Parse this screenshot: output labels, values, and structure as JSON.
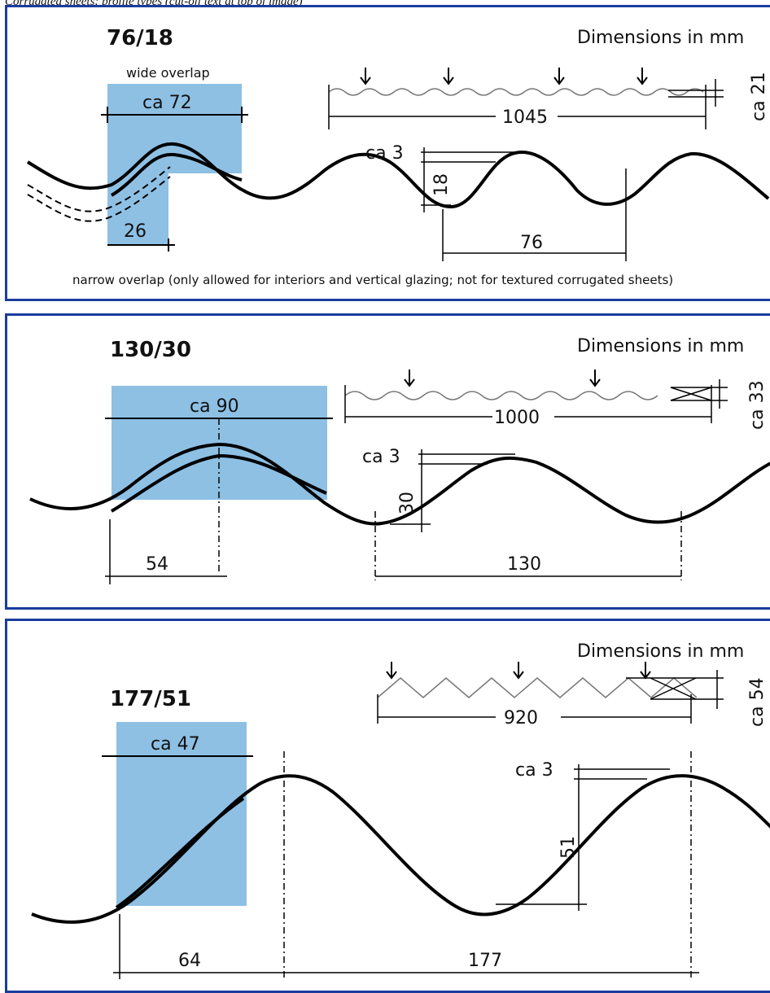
{
  "caption": "Corrugated sheets: profile types (cut-off text at top of image)",
  "colors": {
    "border": "#1a3d9e",
    "overlap_fill": "#8ec0e4",
    "line": "#000000"
  },
  "panels": [
    {
      "profile": "76/18",
      "units": "Dimensions in mm",
      "wide_overlap": "wide overlap",
      "overlap_width": "ca 72",
      "narrow_width": "26",
      "sheet_width": "1045",
      "total_height": "ca 21",
      "thickness": "ca 3",
      "wave_height": "18",
      "pitch": "76",
      "narrow_note": "narrow overlap (only allowed for interiors and vertical glazing; not for textured corrugated sheets)"
    },
    {
      "profile": "130/30",
      "units": "Dimensions in mm",
      "overlap_width": "ca 90",
      "sheet_width": "1000",
      "total_height": "ca 33",
      "thickness": "ca 3",
      "wave_height": "30",
      "overlap_offset": "54",
      "pitch": "130"
    },
    {
      "profile": "177/51",
      "units": "Dimensions in mm",
      "overlap_width": "ca 47",
      "sheet_width": "920",
      "total_height": "ca 54",
      "thickness": "ca 3",
      "wave_height": "51",
      "overlap_offset": "64",
      "pitch": "177"
    }
  ]
}
